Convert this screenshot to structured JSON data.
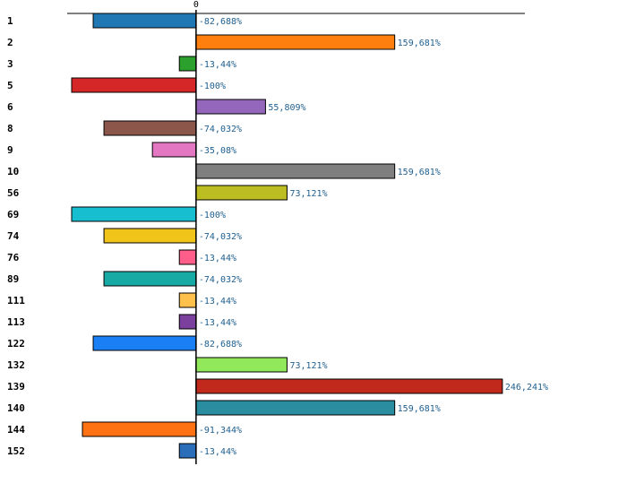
{
  "chart_data": {
    "type": "bar",
    "orientation": "horizontal",
    "title": "",
    "xlabel": "",
    "ylabel": "",
    "xlim": [
      -100,
      260
    ],
    "x_ticks": [
      {
        "value": 0,
        "label": "0"
      }
    ],
    "grid": false,
    "legend": "none",
    "categories": [
      "1",
      "2",
      "3",
      "5",
      "6",
      "8",
      "9",
      "10",
      "56",
      "69",
      "74",
      "76",
      "89",
      "111",
      "113",
      "122",
      "132",
      "139",
      "140",
      "144",
      "152"
    ],
    "values": [
      -82.688,
      159.681,
      -13.44,
      -100,
      55.809,
      -74.032,
      -35.08,
      159.681,
      73.121,
      -100,
      -74.032,
      -13.44,
      -74.032,
      -13.44,
      -13.44,
      -82.688,
      73.121,
      246.241,
      159.681,
      -91.344,
      -13.44
    ],
    "value_labels": [
      "-82,688%",
      "159,681%",
      "-13,44%",
      "-100%",
      "55,809%",
      "-74,032%",
      "-35,08%",
      "159,681%",
      "73,121%",
      "-100%",
      "-74,032%",
      "-13,44%",
      "-74,032%",
      "-13,44%",
      "-13,44%",
      "-82,688%",
      "73,121%",
      "246,241%",
      "159,681%",
      "-91,344%",
      "-13,44%"
    ],
    "colors": [
      "#1f77b4",
      "#ff7f0e",
      "#2ca02c",
      "#d62728",
      "#9467bd",
      "#8c564b",
      "#e377c2",
      "#7f7f7f",
      "#bcbd22",
      "#17becf",
      "#f0c419",
      "#ff5e8a",
      "#17aaa4",
      "#ffc04c",
      "#7b3f9e",
      "#1a7ff5",
      "#90e85a",
      "#c0291b",
      "#2a8ea0",
      "#ff7214",
      "#2a6db8"
    ]
  }
}
